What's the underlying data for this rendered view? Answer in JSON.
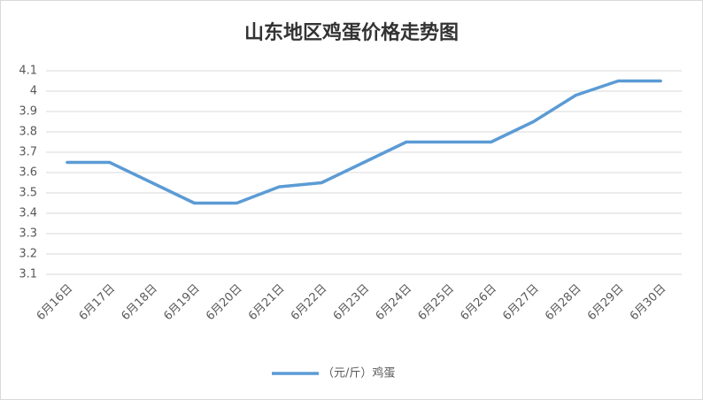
{
  "chart_data": {
    "type": "line",
    "title": "山东地区鸡蛋价格走势图",
    "categories": [
      "6月16日",
      "6月17日",
      "6月18日",
      "6月19日",
      "6月20日",
      "6月21日",
      "6月22日",
      "6月23日",
      "6月24日",
      "6月25日",
      "6月26日",
      "6月27日",
      "6月28日",
      "6月29日",
      "6月30日"
    ],
    "series": [
      {
        "name": "（元/斤）鸡蛋",
        "color": "#5b9bd5",
        "values": [
          3.65,
          3.65,
          3.55,
          3.45,
          3.45,
          3.53,
          3.55,
          3.65,
          3.75,
          3.75,
          3.75,
          3.85,
          3.98,
          4.05,
          4.05
        ]
      }
    ],
    "ylim": [
      3.1,
      4.1
    ],
    "yticks": [
      3.1,
      3.2,
      3.3,
      3.4,
      3.5,
      3.6,
      3.7,
      3.8,
      3.9,
      4,
      4.1
    ],
    "grid": true,
    "legend": "bottom"
  }
}
